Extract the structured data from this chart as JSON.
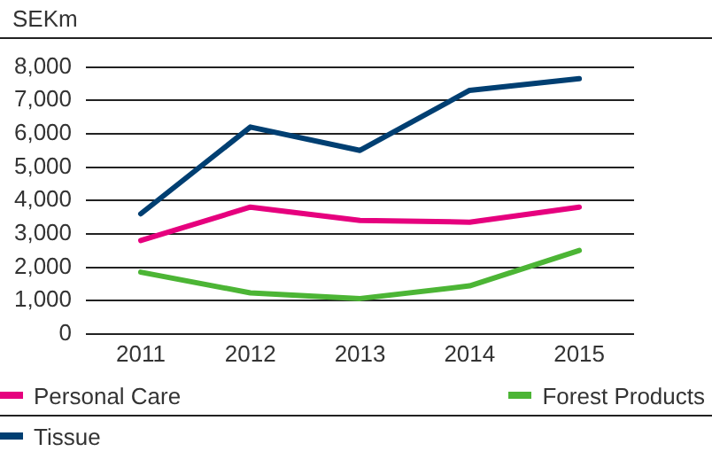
{
  "chart_data": {
    "type": "line",
    "ylabel": "SEKm",
    "categories": [
      "2011",
      "2012",
      "2013",
      "2014",
      "2015"
    ],
    "series": [
      {
        "name": "Personal Care",
        "color": "#e6007e",
        "values": [
          2800,
          3800,
          3400,
          3350,
          3800
        ]
      },
      {
        "name": "Forest Products",
        "color": "#4cb535",
        "values": [
          1850,
          1230,
          1060,
          1440,
          2500
        ]
      },
      {
        "name": "Tissue",
        "color": "#003f72",
        "values": [
          3600,
          6200,
          5500,
          7300,
          7650
        ]
      }
    ],
    "ylim": [
      0,
      8000
    ],
    "yticks": [
      0,
      {
        "value": 1000,
        "label": "1,000"
      },
      {
        "value": 2000,
        "label": "2,000"
      },
      {
        "value": 3000,
        "label": "3,000"
      },
      {
        "value": 4000,
        "label": "4,000"
      },
      {
        "value": 5000,
        "label": "5,000"
      },
      {
        "value": 6000,
        "label": "6,000"
      },
      {
        "value": 7000,
        "label": "7,000"
      },
      {
        "value": 8000,
        "label": "8,000"
      }
    ],
    "grid": "y",
    "legend": "bottom",
    "marker": "none",
    "line_style": "solid"
  }
}
